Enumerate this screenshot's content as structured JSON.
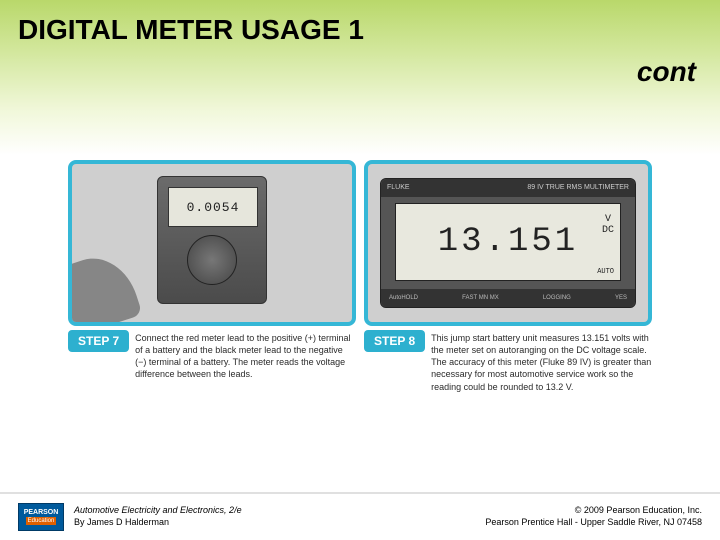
{
  "header": {
    "title": "DIGITAL METER USAGE 1",
    "cont": "cont",
    "gradient_top": "#b9d86a",
    "gradient_bottom": "#ffffff",
    "title_fontsize": 28
  },
  "panels": {
    "left": {
      "border_color": "#35b7d6",
      "meter_reading": "0.0054",
      "step_badge": "STEP 7",
      "step_text": "Connect the red meter lead to the positive (+) terminal of a battery and the black meter lead to the negative (−) terminal of a battery. The meter reads the voltage difference between the leads."
    },
    "right": {
      "border_color": "#35b7d6",
      "brand": "FLUKE",
      "model": "89 IV  TRUE RMS MULTIMETER",
      "reading": "13.151",
      "unit_top": "V",
      "unit_bottom": "DC",
      "auto_label": "AUTO",
      "bottom_labels": {
        "a": "AutoHOLD",
        "b": "FAST MN MX",
        "c": "LOGGING",
        "d": "YES"
      },
      "step_badge": "STEP 8",
      "step_text": "This jump start battery unit measures 13.151 volts with the meter set on autoranging on the DC voltage scale. The accuracy of this meter (Fluke 89 IV) is greater than necessary for most automotive service work so the reading could be rounded to 13.2 V."
    },
    "badge_bg": "#2db0cf",
    "badge_color": "#ffffff"
  },
  "footer": {
    "logo_top": "PEARSON",
    "logo_bottom": "Education",
    "logo_bg": "#005a9c",
    "logo_accent": "#e06000",
    "book_title": "Automotive Electricity and Electronics, 2/e",
    "book_author": "By James D Halderman",
    "copyright": "© 2009 Pearson Education, Inc.",
    "publisher": "Pearson Prentice Hall - Upper Saddle River, NJ 07458"
  }
}
